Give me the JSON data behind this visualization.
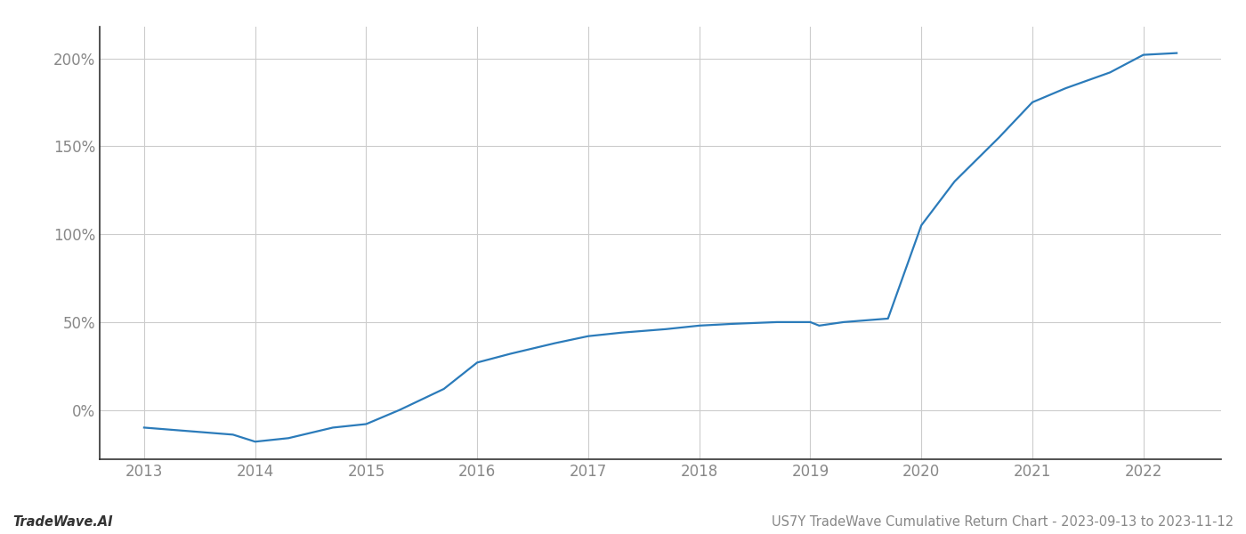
{
  "x_values": [
    2013.0,
    2013.4,
    2013.8,
    2014.0,
    2014.3,
    2014.7,
    2015.0,
    2015.3,
    2015.7,
    2016.0,
    2016.3,
    2016.7,
    2017.0,
    2017.3,
    2017.7,
    2018.0,
    2018.3,
    2018.7,
    2019.0,
    2019.08,
    2019.3,
    2019.7,
    2020.0,
    2020.3,
    2020.7,
    2021.0,
    2021.3,
    2021.7,
    2022.0,
    2022.3
  ],
  "y_values": [
    -10,
    -12,
    -14,
    -18,
    -16,
    -10,
    -8,
    0,
    12,
    27,
    32,
    38,
    42,
    44,
    46,
    48,
    49,
    50,
    50,
    48,
    50,
    52,
    105,
    130,
    155,
    175,
    183,
    192,
    202,
    203
  ],
  "line_color": "#2b7bba",
  "background_color": "#ffffff",
  "grid_color": "#cccccc",
  "footer_left": "TradeWave.AI",
  "footer_right": "US7Y TradeWave Cumulative Return Chart - 2023-09-13 to 2023-11-12",
  "yticks": [
    0,
    50,
    100,
    150,
    200
  ],
  "ytick_labels": [
    "0%",
    "50%",
    "100%",
    "150%",
    "200%"
  ],
  "xlim": [
    2012.6,
    2022.7
  ],
  "ylim": [
    -28,
    218
  ],
  "xticks": [
    2013,
    2014,
    2015,
    2016,
    2017,
    2018,
    2019,
    2020,
    2021,
    2022
  ],
  "line_width": 1.6,
  "footer_fontsize": 10.5,
  "axis_tick_fontsize": 12,
  "spine_color": "#aaaaaa",
  "left_spine_color": "#333333"
}
